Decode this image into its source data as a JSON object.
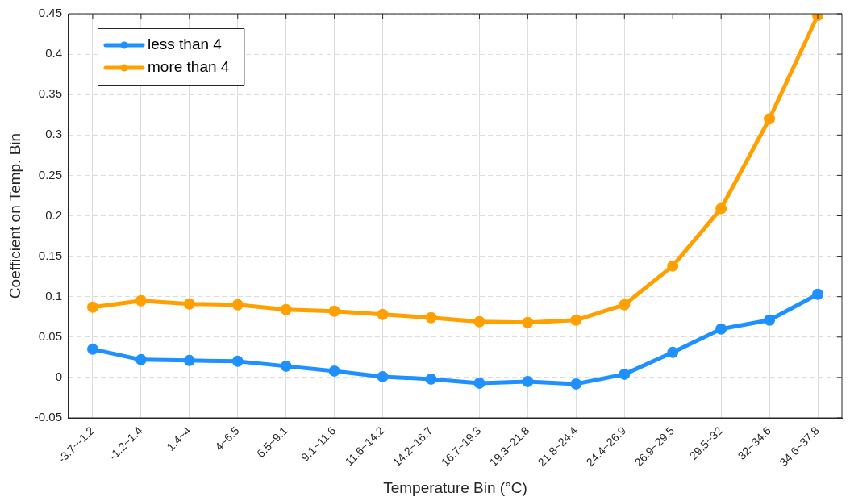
{
  "chart_data": {
    "type": "line",
    "xlabel": "Temperature Bin (°C)",
    "ylabel": "Coefficient on Temp. Bin",
    "categories": [
      "-3.7~-1.2",
      "-1.2~1.4",
      "1.4~4",
      "4~6.5",
      "6.5~9.1",
      "9.1~11.6",
      "11.6~14.2",
      "14.2~16.7",
      "16.7~19.3",
      "19.3~21.8",
      "21.8~24.4",
      "24.4~26.9",
      "26.9~29.5",
      "29.5~32",
      "32~34.6",
      "34.6~37.8"
    ],
    "series": [
      {
        "name": "less than 4",
        "color": "#1e90ff",
        "values": [
          0.035,
          0.022,
          0.021,
          0.02,
          0.014,
          0.008,
          0.001,
          -0.002,
          -0.007,
          -0.005,
          -0.008,
          0.004,
          0.031,
          0.06,
          0.071,
          0.103
        ]
      },
      {
        "name": "more than 4",
        "color": "#ff9f00",
        "values": [
          0.087,
          0.095,
          0.091,
          0.09,
          0.084,
          0.082,
          0.078,
          0.074,
          0.069,
          0.068,
          0.071,
          0.09,
          0.138,
          0.209,
          0.32,
          0.448
        ]
      }
    ],
    "ylim": [
      -0.05,
      0.45
    ],
    "yticks": [
      -0.05,
      0,
      0.05,
      0.1,
      0.15,
      0.2,
      0.25,
      0.3,
      0.35,
      0.4,
      0.45
    ],
    "grid": true,
    "legend": "top left",
    "marker": "circle",
    "line_style": "solid"
  }
}
